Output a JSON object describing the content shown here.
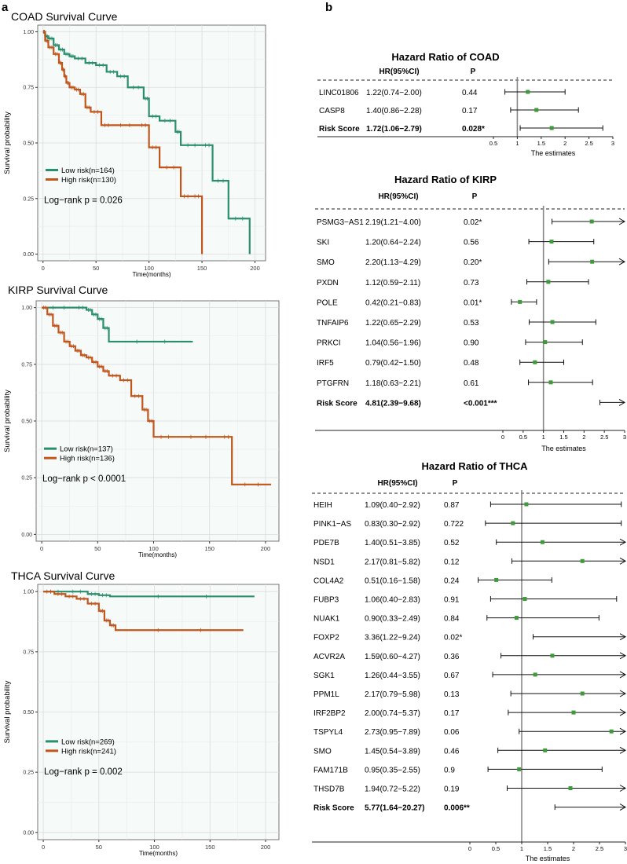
{
  "panel_labels": {
    "a": "a",
    "b": "b"
  },
  "colors": {
    "low": "#2b8f6e",
    "high": "#c0561c",
    "panel_bg": "#f6faf8",
    "grid": "#dcdcdc",
    "point": "#3f9a3c"
  },
  "chart_data": [
    {
      "type": "line",
      "panel": "a",
      "title": "COAD Survival Curve",
      "xlabel": "Time(months)",
      "ylabel": "Survival probability",
      "xlim": [
        -5,
        210
      ],
      "ylim": [
        -0.03,
        1.03
      ],
      "xticks": [
        0,
        50,
        100,
        150,
        200
      ],
      "xtick_labels": [
        "0",
        "50",
        "100",
        "150",
        "200"
      ],
      "yticks": [
        0,
        0.25,
        0.5,
        0.75,
        1
      ],
      "ytick_labels": [
        "0.00",
        "0.25",
        "0.50",
        "0.75",
        "1.00"
      ],
      "legend": [
        "Low risk(n=164)",
        "High risk(n=130)"
      ],
      "annotation": "Log−rank   p = 0.026",
      "series": [
        {
          "name": "Low risk(n=164)",
          "x": [
            0,
            2,
            5,
            10,
            15,
            20,
            25,
            30,
            40,
            50,
            60,
            70,
            80,
            95,
            100,
            110,
            125,
            130,
            150,
            160,
            175,
            195
          ],
          "y": [
            1.0,
            0.98,
            0.97,
            0.94,
            0.92,
            0.9,
            0.89,
            0.88,
            0.86,
            0.85,
            0.82,
            0.8,
            0.75,
            0.7,
            0.62,
            0.6,
            0.55,
            0.49,
            0.49,
            0.33,
            0.16,
            0.0
          ]
        },
        {
          "name": "High risk(n=130)",
          "x": [
            0,
            2,
            5,
            10,
            15,
            18,
            20,
            22,
            25,
            30,
            35,
            40,
            45,
            55,
            65,
            90,
            100,
            110,
            130,
            140,
            150
          ],
          "y": [
            1.0,
            0.96,
            0.93,
            0.9,
            0.86,
            0.83,
            0.8,
            0.77,
            0.75,
            0.74,
            0.72,
            0.66,
            0.64,
            0.58,
            0.58,
            0.58,
            0.48,
            0.39,
            0.26,
            0.26,
            0.0
          ]
        }
      ]
    },
    {
      "type": "line",
      "panel": "a",
      "title": "KIRP Survival Curve",
      "xlabel": "Time(months)",
      "ylabel": "Survival probability",
      "xlim": [
        -5,
        212
      ],
      "ylim": [
        -0.03,
        1.03
      ],
      "xticks": [
        0,
        50,
        100,
        150,
        200
      ],
      "xtick_labels": [
        "0",
        "50",
        "100",
        "150",
        "200"
      ],
      "yticks": [
        0,
        0.25,
        0.5,
        0.75,
        1
      ],
      "ytick_labels": [
        "0.00",
        "0.25",
        "0.50",
        "0.75",
        "1.00"
      ],
      "legend": [
        "Low risk(n=137)",
        "High risk(n=136)"
      ],
      "annotation": "Log−rank   p < 0.0001",
      "series": [
        {
          "name": "Low risk(n=137)",
          "x": [
            0,
            30,
            40,
            45,
            50,
            55,
            60,
            135
          ],
          "y": [
            1.0,
            1.0,
            0.99,
            0.97,
            0.95,
            0.91,
            0.85,
            0.85
          ]
        },
        {
          "name": "High risk(n=136)",
          "x": [
            0,
            5,
            10,
            15,
            20,
            25,
            30,
            35,
            40,
            45,
            50,
            55,
            60,
            70,
            80,
            90,
            95,
            100,
            120,
            160,
            170,
            205
          ],
          "y": [
            1.0,
            0.97,
            0.92,
            0.89,
            0.85,
            0.83,
            0.81,
            0.79,
            0.78,
            0.76,
            0.74,
            0.72,
            0.7,
            0.68,
            0.61,
            0.55,
            0.5,
            0.43,
            0.43,
            0.43,
            0.22,
            0.22
          ]
        }
      ]
    },
    {
      "type": "line",
      "panel": "a",
      "title": "THCA Survival Curve",
      "xlabel": "Time(months)",
      "ylabel": "Survival probability",
      "xlim": [
        -5,
        212
      ],
      "ylim": [
        -0.03,
        1.03
      ],
      "xticks": [
        0,
        50,
        100,
        150,
        200
      ],
      "xtick_labels": [
        "0",
        "50",
        "100",
        "150",
        "200"
      ],
      "yticks": [
        0,
        0.25,
        0.5,
        0.75,
        1
      ],
      "ytick_labels": [
        "0.00",
        "0.25",
        "0.50",
        "0.75",
        "1.00"
      ],
      "legend": [
        "Low risk(n=269)",
        "High risk(n=241)"
      ],
      "annotation": "Log−rank   p = 0.002",
      "series": [
        {
          "name": "Low risk(n=269)",
          "x": [
            0,
            20,
            40,
            50,
            60,
            190
          ],
          "y": [
            1.0,
            1.0,
            0.99,
            0.985,
            0.98,
            0.98
          ]
        },
        {
          "name": "High risk(n=241)",
          "x": [
            0,
            10,
            20,
            30,
            40,
            50,
            55,
            60,
            65,
            180
          ],
          "y": [
            1.0,
            0.99,
            0.98,
            0.97,
            0.95,
            0.92,
            0.88,
            0.86,
            0.84,
            0.84
          ]
        }
      ]
    },
    {
      "type": "forest",
      "panel": "b",
      "title": "Hazard Ratio of COAD",
      "col_headers": {
        "hr": "HR(95%CI)",
        "p": "P"
      },
      "xlabel": "The estimates",
      "xlim": [
        0.5,
        3
      ],
      "ref_line": 1,
      "xticks": [
        0.5,
        1,
        1.5,
        2,
        2.5,
        3
      ],
      "xtick_labels": [
        "0.5",
        "1",
        "1.5",
        "2",
        "2.5",
        "3"
      ],
      "rows": [
        {
          "gene": "LINC01806",
          "hr_text": "1.22(0.74−2.00)",
          "p": "0.44",
          "est": 1.22,
          "lo": 0.74,
          "hi": 2.0
        },
        {
          "gene": "CASP8",
          "hr_text": "1.40(0.86−2.28)",
          "p": "0.17",
          "est": 1.4,
          "lo": 0.86,
          "hi": 2.28
        },
        {
          "gene": "Risk Score",
          "hr_text": "1.72(1.06−2.79)",
          "p": "0.028*",
          "est": 1.72,
          "lo": 1.06,
          "hi": 2.79,
          "bold": true
        }
      ]
    },
    {
      "type": "forest",
      "panel": "b",
      "title": "Hazard Ratio of KIRP",
      "col_headers": {
        "hr": "HR(95%CI)",
        "p": "P"
      },
      "xlabel": "The estimates",
      "xlim": [
        0,
        3
      ],
      "ref_line": 1,
      "xticks": [
        0,
        0.5,
        1,
        1.5,
        2,
        2.5,
        3
      ],
      "xtick_labels": [
        "0",
        "0.5",
        "1",
        "1.5",
        "2",
        "2.5",
        "3"
      ],
      "rows": [
        {
          "gene": "PSMG3−AS1",
          "hr_text": "2.19(1.21−4.00)",
          "p": "0.02*",
          "est": 2.19,
          "lo": 1.21,
          "hi": 4.0
        },
        {
          "gene": "SKI",
          "hr_text": "1.20(0.64−2.24)",
          "p": "0.56",
          "est": 1.2,
          "lo": 0.64,
          "hi": 2.24
        },
        {
          "gene": "SMO",
          "hr_text": "2.20(1.13−4.29)",
          "p": "0.20*",
          "est": 2.2,
          "lo": 1.13,
          "hi": 4.29
        },
        {
          "gene": "PXDN",
          "hr_text": "1.12(0.59−2.11)",
          "p": "0.73",
          "est": 1.12,
          "lo": 0.59,
          "hi": 2.11
        },
        {
          "gene": "POLE",
          "hr_text": "0.42(0.21−0.83)",
          "p": "0.01*",
          "est": 0.42,
          "lo": 0.21,
          "hi": 0.83
        },
        {
          "gene": "TNFAIP6",
          "hr_text": "1.22(0.65−2.29)",
          "p": "0.53",
          "est": 1.22,
          "lo": 0.65,
          "hi": 2.29
        },
        {
          "gene": "PRKCI",
          "hr_text": "1.04(0.56−1.96)",
          "p": "0.90",
          "est": 1.04,
          "lo": 0.56,
          "hi": 1.96
        },
        {
          "gene": "IRF5",
          "hr_text": "0.79(0.42−1.50)",
          "p": "0.48",
          "est": 0.79,
          "lo": 0.42,
          "hi": 1.5
        },
        {
          "gene": "PTGFRN",
          "hr_text": "1.18(0.63−2.21)",
          "p": "0.61",
          "est": 1.18,
          "lo": 0.63,
          "hi": 2.21
        },
        {
          "gene": "Risk Score",
          "hr_text": "4.81(2.39−9.68)",
          "p": "<0.001***",
          "est": 4.81,
          "lo": 2.39,
          "hi": 9.68,
          "bold": true
        }
      ]
    },
    {
      "type": "forest",
      "panel": "b",
      "title": "Hazard Ratio of THCA",
      "col_headers": {
        "hr": "HR(95%CI)",
        "p": "P"
      },
      "xlabel": "The estimates",
      "xlim": [
        0,
        3
      ],
      "ref_line": 1,
      "xticks": [
        0,
        0.5,
        1,
        1.5,
        2,
        2.5,
        3
      ],
      "xtick_labels": [
        "0",
        "0.5",
        "1",
        "1.5",
        "2",
        "2.5",
        "3"
      ],
      "rows": [
        {
          "gene": "HEIH",
          "hr_text": "1.09(0.40−2.92)",
          "p": "0.87",
          "est": 1.09,
          "lo": 0.4,
          "hi": 2.92
        },
        {
          "gene": "PINK1−AS",
          "hr_text": "0.83(0.30−2.92)",
          "p": "0.722",
          "est": 0.83,
          "lo": 0.3,
          "hi": 2.92
        },
        {
          "gene": "PDE7B",
          "hr_text": "1.40(0.51−3.85)",
          "p": "0.52",
          "est": 1.4,
          "lo": 0.51,
          "hi": 3.85
        },
        {
          "gene": "NSD1",
          "hr_text": "2.17(0.81−5.82)",
          "p": "0.12",
          "est": 2.17,
          "lo": 0.81,
          "hi": 5.82
        },
        {
          "gene": "COL4A2",
          "hr_text": "0.51(0.16−1.58)",
          "p": "0.24",
          "est": 0.51,
          "lo": 0.16,
          "hi": 1.58
        },
        {
          "gene": "FUBP3",
          "hr_text": "1.06(0.40−2.83)",
          "p": "0.91",
          "est": 1.06,
          "lo": 0.4,
          "hi": 2.83
        },
        {
          "gene": "NUAK1",
          "hr_text": "0.90(0.33−2.49)",
          "p": "0.84",
          "est": 0.9,
          "lo": 0.33,
          "hi": 2.49
        },
        {
          "gene": "FOXP2",
          "hr_text": "3.36(1.22−9.24)",
          "p": "0.02*",
          "est": 3.36,
          "lo": 1.22,
          "hi": 9.24
        },
        {
          "gene": "ACVR2A",
          "hr_text": "1.59(0.60−4.27)",
          "p": "0.36",
          "est": 1.59,
          "lo": 0.6,
          "hi": 4.27
        },
        {
          "gene": "SGK1",
          "hr_text": "1.26(0.44−3.55)",
          "p": "0.67",
          "est": 1.26,
          "lo": 0.44,
          "hi": 3.55
        },
        {
          "gene": "PPM1L",
          "hr_text": "2.17(0.79−5.98)",
          "p": "0.13",
          "est": 2.17,
          "lo": 0.79,
          "hi": 5.98
        },
        {
          "gene": "IRF2BP2",
          "hr_text": "2.00(0.74−5.37)",
          "p": "0.17",
          "est": 2.0,
          "lo": 0.74,
          "hi": 5.37
        },
        {
          "gene": "TSPYL4",
          "hr_text": "2.73(0.95−7.89)",
          "p": "0.06",
          "est": 2.73,
          "lo": 0.95,
          "hi": 7.89
        },
        {
          "gene": "SMO",
          "hr_text": "1.45(0.54−3.89)",
          "p": "0.46",
          "est": 1.45,
          "lo": 0.54,
          "hi": 3.89
        },
        {
          "gene": "FAM171B",
          "hr_text": "0.95(0.35−2.55)",
          "p": "0.9",
          "est": 0.95,
          "lo": 0.35,
          "hi": 2.55
        },
        {
          "gene": "THSD7B",
          "hr_text": "1.94(0.72−5.22)",
          "p": "0.19",
          "est": 1.94,
          "lo": 0.72,
          "hi": 5.22
        },
        {
          "gene": "Risk Score",
          "hr_text": "5.77(1.64−20.27)",
          "p": "0.006**",
          "est": 5.77,
          "lo": 1.64,
          "hi": 20.27,
          "bold": true
        }
      ]
    }
  ]
}
